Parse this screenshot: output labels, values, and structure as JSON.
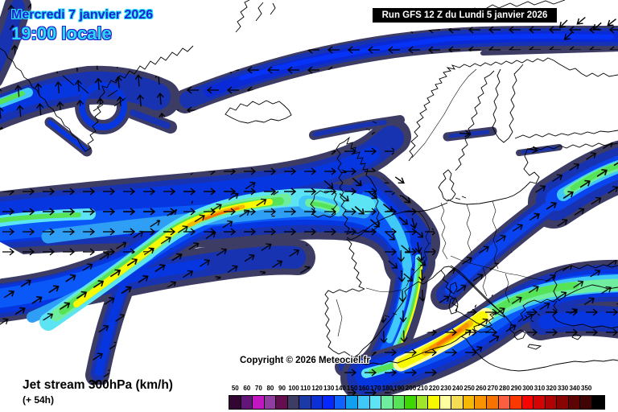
{
  "header": {
    "date_line": "Mercredi 7 janvier 2026",
    "time_line": "19:00 locale",
    "run_label": "Run GFS 12 Z du Lundi 5 janvier 2026"
  },
  "map": {
    "copyright": "Copyright © 2026 Meteociel.fr",
    "region": "North Atlantic / Europe",
    "feature": "jet stream wind speed bands with flow arrows"
  },
  "footer": {
    "title": "Jet stream 300hPa (km/h)",
    "forecast_offset": "(+ 54h)"
  },
  "legend": {
    "unit": "km/h",
    "cells": [
      {
        "label": "50",
        "color": "#320532"
      },
      {
        "label": "60",
        "color": "#641678"
      },
      {
        "label": "70",
        "color": "#c316c3"
      },
      {
        "label": "80",
        "color": "#8f3da0"
      },
      {
        "label": "90",
        "color": "#650d51"
      },
      {
        "label": "100",
        "color": "#3c3c64"
      },
      {
        "label": "110",
        "color": "#1b3aa5"
      },
      {
        "label": "120",
        "color": "#0c2fd6"
      },
      {
        "label": "130",
        "color": "#0426ff"
      },
      {
        "label": "140",
        "color": "#0f62ff"
      },
      {
        "label": "150",
        "color": "#119ff0"
      },
      {
        "label": "160",
        "color": "#40c8f8"
      },
      {
        "label": "170",
        "color": "#5ce4f5"
      },
      {
        "label": "180",
        "color": "#6fee9f"
      },
      {
        "label": "190",
        "color": "#57e357"
      },
      {
        "label": "200",
        "color": "#3cd800"
      },
      {
        "label": "210",
        "color": "#9fe52c"
      },
      {
        "label": "220",
        "color": "#f8f800"
      },
      {
        "label": "230",
        "color": "#ffffa0"
      },
      {
        "label": "240",
        "color": "#f4dc55"
      },
      {
        "label": "250",
        "color": "#f6b800"
      },
      {
        "label": "260",
        "color": "#f89300"
      },
      {
        "label": "270",
        "color": "#f87200"
      },
      {
        "label": "280",
        "color": "#fc5f40"
      },
      {
        "label": "290",
        "color": "#fb3800"
      },
      {
        "label": "300",
        "color": "#f80400"
      },
      {
        "label": "310",
        "color": "#d40404"
      },
      {
        "label": "320",
        "color": "#b00404"
      },
      {
        "label": "330",
        "color": "#8b0404"
      },
      {
        "label": "340",
        "color": "#5e0404"
      },
      {
        "label": "350",
        "color": "#400404"
      },
      {
        "label": "",
        "color": "#000000"
      }
    ]
  }
}
